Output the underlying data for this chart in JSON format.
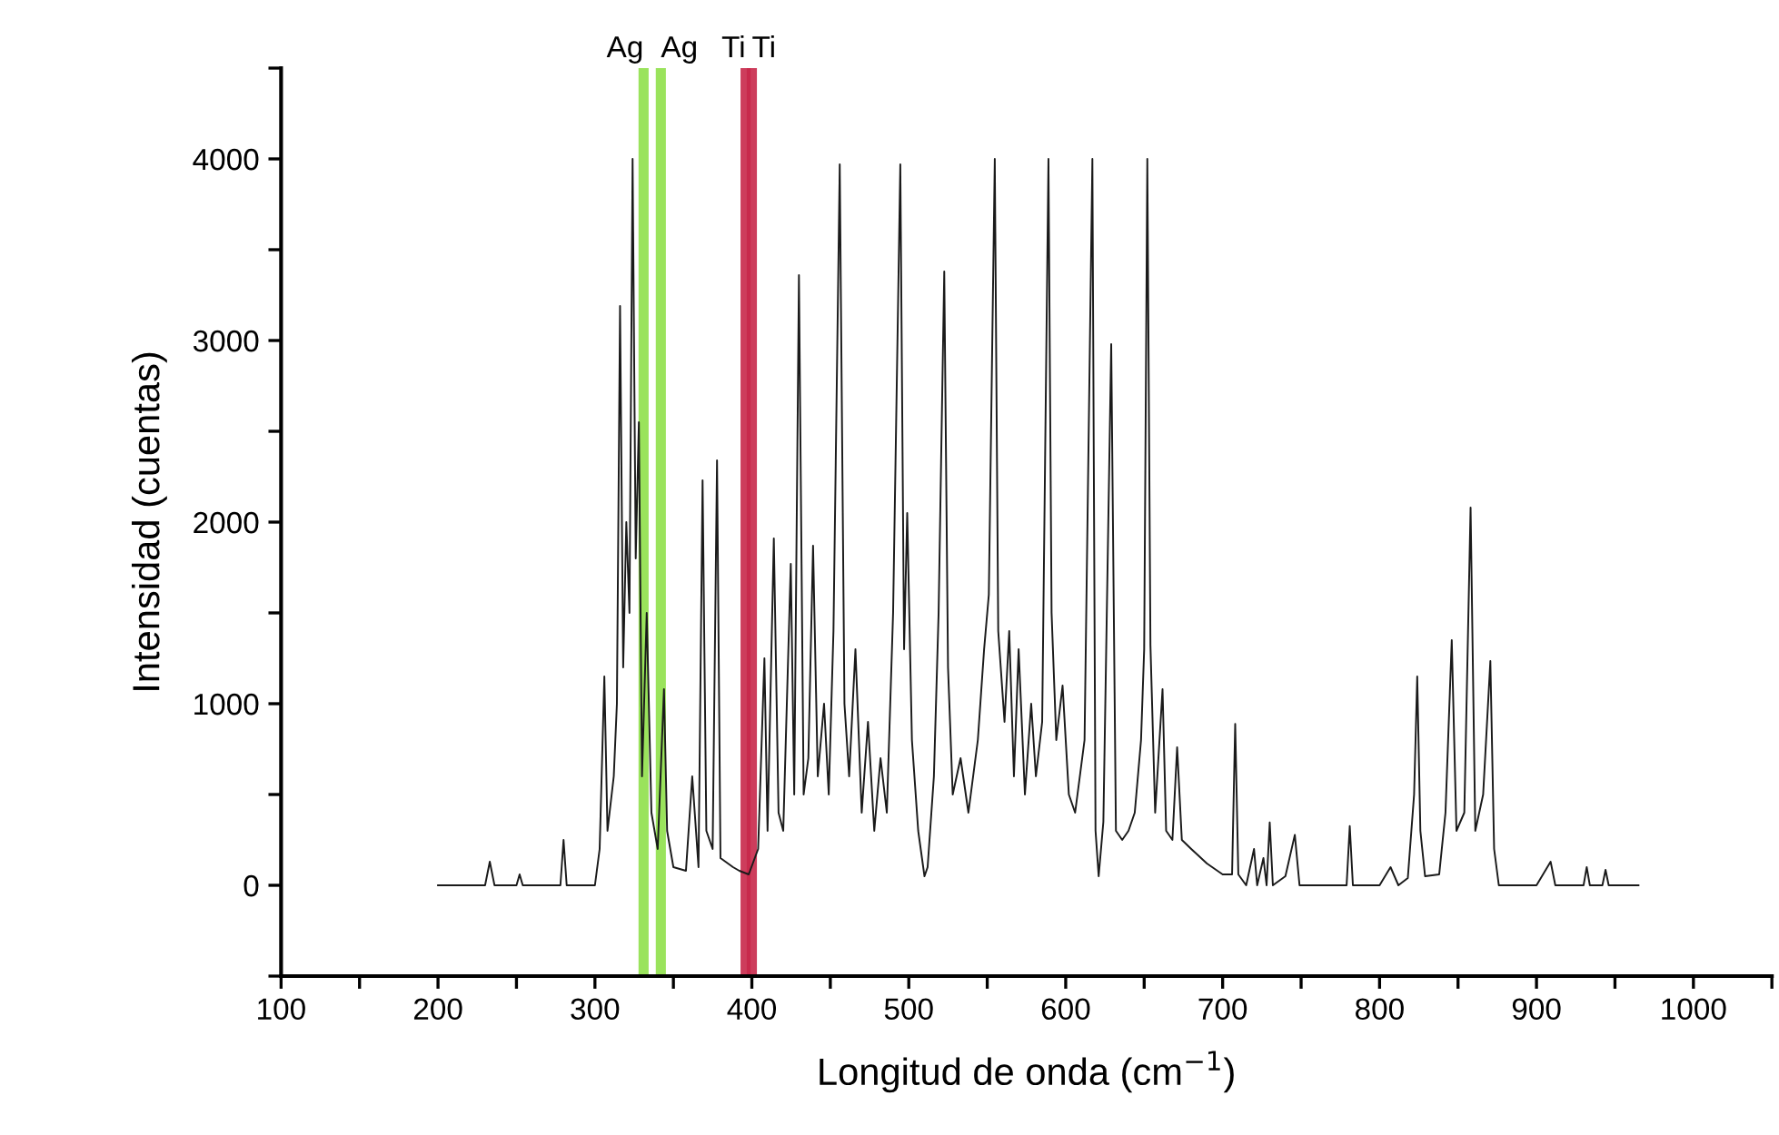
{
  "chart_data": {
    "type": "line",
    "xlabel": "Longitud de onda (cm$^{−1}$)",
    "ylabel": "Intensidad (cuentas)",
    "xlim": [
      100,
      1050
    ],
    "xticks": [
      100,
      {
        "value": 150,
        "label": null
      },
      200,
      {
        "value": 250,
        "label": null
      },
      300,
      {
        "value": 350,
        "label": null
      },
      400,
      {
        "value": 450,
        "label": null
      },
      500,
      {
        "value": 550,
        "label": null
      },
      600,
      {
        "value": 650,
        "label": null
      },
      700,
      {
        "value": 750,
        "label": null
      },
      800,
      {
        "value": 850,
        "label": null
      },
      900,
      {
        "value": 950,
        "label": null
      },
      1000,
      {
        "value": 1050,
        "label": null
      }
    ],
    "ylim": [
      -500,
      4500
    ],
    "yticks": [
      {
        "value": -500,
        "label": null
      },
      0,
      {
        "value": 500,
        "label": null
      },
      1000,
      {
        "value": 1500,
        "label": null
      },
      2000,
      {
        "value": 2500,
        "label": null
      },
      3000,
      {
        "value": 3500,
        "label": null
      },
      4000,
      {
        "value": 4500,
        "label": null
      }
    ],
    "grid": false,
    "legend": false,
    "marker": "none",
    "line_style": "solid",
    "ref_lines": [
      {
        "axis": "x",
        "value": 331,
        "color": "#8fe04a",
        "label": "Ag"
      },
      {
        "axis": "x",
        "value": 342,
        "color": "#8fe04a",
        "label": "Ag"
      },
      {
        "axis": "x",
        "value": 396,
        "color": "#c8284a",
        "label": "Ti"
      },
      {
        "axis": "x",
        "value": 400,
        "color": "#c8284a",
        "label": "Ti"
      }
    ],
    "series": [
      {
        "color": "#1a1a1a",
        "x": [
          200,
          230,
          233,
          236,
          250,
          252,
          254,
          278,
          280,
          282,
          300,
          303,
          306,
          308,
          312,
          314,
          316,
          318,
          320,
          322,
          324,
          326,
          328,
          330,
          333,
          336,
          340,
          344,
          346,
          350,
          358,
          362,
          366,
          368.6,
          371,
          375,
          377.8,
          380,
          388,
          392,
          398,
          404,
          408,
          410,
          414,
          417,
          420,
          424.8,
          427,
          430,
          433,
          436,
          439,
          442,
          446,
          449,
          452,
          456,
          459,
          462,
          466,
          470,
          474,
          478,
          482,
          486,
          490,
          494.6,
          497,
          499,
          502,
          506,
          510,
          512,
          516,
          519,
          522.6,
          525,
          528,
          533,
          538,
          544,
          548,
          551,
          554.8,
          557,
          561,
          564,
          567,
          570,
          574,
          578,
          581,
          585,
          589,
          591,
          594,
          598,
          602,
          606,
          612,
          617,
          619,
          621,
          624,
          629,
          632,
          636,
          640,
          644,
          648,
          650,
          652,
          654,
          657,
          661.7,
          664,
          668,
          671,
          674,
          680,
          690,
          700,
          706,
          708,
          710,
          715,
          720,
          722,
          726,
          728,
          730,
          732,
          740,
          746,
          749,
          760,
          770,
          779,
          781,
          783,
          800,
          807,
          812,
          818,
          822,
          824,
          826,
          829,
          838,
          842,
          846,
          849,
          854,
          858,
          861,
          866,
          870.6,
          873,
          876,
          900,
          909,
          912,
          930,
          932,
          934,
          942,
          944,
          946,
          965
        ],
        "values": [
          0,
          0,
          130,
          0,
          0,
          60,
          0,
          0,
          250,
          0,
          0,
          200,
          1150,
          300,
          600,
          1000,
          3190,
          1200,
          2000,
          1500,
          4000,
          1800,
          2550,
          600,
          1500,
          400,
          200,
          1080,
          300,
          100,
          80,
          600,
          100,
          2230,
          300,
          200,
          2340,
          150,
          100,
          80,
          60,
          200,
          1250,
          300,
          1910,
          400,
          300,
          1770,
          500,
          3360,
          500,
          700,
          1870,
          600,
          1000,
          500,
          1400,
          3970,
          1000,
          600,
          1300,
          400,
          900,
          300,
          700,
          400,
          1500,
          3970,
          1300,
          2050,
          800,
          300,
          50,
          100,
          600,
          1500,
          3380,
          1200,
          500,
          700,
          400,
          800,
          1300,
          1600,
          4000,
          1400,
          900,
          1400,
          600,
          1300,
          500,
          1000,
          600,
          900,
          4000,
          1500,
          800,
          1100,
          500,
          400,
          800,
          4000,
          300,
          50,
          350,
          2980,
          300,
          250,
          300,
          400,
          800,
          1300,
          4000,
          1320,
          400,
          1080,
          300,
          250,
          760,
          250,
          200,
          120,
          60,
          60,
          889,
          60,
          0,
          200,
          0,
          150,
          0,
          346,
          0,
          50,
          278,
          0,
          0,
          0,
          0,
          326,
          0,
          0,
          100,
          0,
          40,
          500,
          1150,
          300,
          50,
          60,
          400,
          1350,
          300,
          400,
          2080,
          300,
          500,
          1235,
          200,
          0,
          0,
          130,
          0,
          0,
          100,
          0,
          0,
          85,
          0,
          0
        ]
      }
    ]
  }
}
